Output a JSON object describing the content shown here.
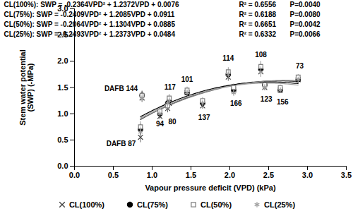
{
  "chart_data": {
    "type": "scatter",
    "xlabel": "Vapour pressure deficit (VPD) (kPa)",
    "ylabel": [
      "Stem water potential",
      "(SWP) (-MPa)"
    ],
    "xlim": [
      0,
      3.5
    ],
    "xticks": [
      {
        "value": 0,
        "label": "0.0"
      },
      {
        "value": 0.5,
        "label": "0.5"
      },
      {
        "value": 1,
        "label": "1.0"
      },
      {
        "value": 1.5,
        "label": "1.5"
      },
      {
        "value": 2,
        "label": "2.0"
      },
      {
        "value": 2.5,
        "label": "2.5"
      },
      {
        "value": 3,
        "label": "3.0"
      },
      {
        "value": 3.5,
        "label": "3.5"
      }
    ],
    "ylim": [
      0,
      3
    ],
    "yticks": [
      {
        "value": 0,
        "label": "0.0"
      },
      {
        "value": 0.5,
        "label": "0.5"
      },
      {
        "value": 1,
        "label": "1.0"
      },
      {
        "value": 1.5,
        "label": "1.5"
      },
      {
        "value": 2,
        "label": "2.0"
      },
      {
        "value": 2.5,
        "label": "2.5"
      },
      {
        "value": 3,
        "label": "3.0"
      }
    ],
    "grid": false,
    "legend": "bottom",
    "x": [
      0.85,
      0.87,
      1.1,
      1.2,
      1.22,
      1.45,
      1.65,
      1.98,
      2.05,
      2.4,
      2.45,
      2.65,
      2.88
    ],
    "series": [
      {
        "name": "CL(100%)",
        "color": "#404040",
        "marker": "times",
        "values": [
          0.55,
          1.3,
          0.95,
          1.1,
          1.2,
          1.4,
          1.15,
          1.7,
          1.45,
          1.8,
          1.5,
          1.45,
          1.65
        ],
        "errors": [
          0.1,
          0.08,
          0.06,
          0.08,
          0.07,
          0.06,
          0.06,
          0.08,
          0.07,
          0.1,
          0.06,
          0.05,
          0.05
        ],
        "fit": [
          -0.2364,
          1.2372,
          0.0076
        ],
        "equation": ": SWP = -0.2364VPD² + 1.2372VPD + 0.0076",
        "r2": "R² = 0.6556",
        "p": "P=0.0040"
      },
      {
        "name": "CL(75%)",
        "color": "#000000",
        "marker": "circle",
        "values": [
          0.7,
          1.35,
          1.0,
          1.2,
          1.25,
          1.4,
          1.2,
          1.75,
          1.45,
          1.85,
          1.55,
          1.45,
          1.65
        ],
        "errors": [
          0.1,
          0.08,
          0.06,
          0.08,
          0.07,
          0.06,
          0.06,
          0.08,
          0.07,
          0.1,
          0.06,
          0.05,
          0.05
        ],
        "fit": [
          -0.2409,
          1.2085,
          0.0911
        ],
        "equation": ": SWP = -0.2409VPD² + 1.2085VPD + 0.0911",
        "r2": "R² = 0.6188",
        "p": "P=0.0080"
      },
      {
        "name": "CL(50%)",
        "color": "#808080",
        "marker": "square",
        "values": [
          0.75,
          1.35,
          1.05,
          1.15,
          1.3,
          1.45,
          1.25,
          1.8,
          1.5,
          1.9,
          1.55,
          1.5,
          1.7
        ],
        "errors": [
          0.1,
          0.08,
          0.06,
          0.08,
          0.07,
          0.06,
          0.06,
          0.08,
          0.07,
          0.1,
          0.06,
          0.05,
          0.05
        ],
        "fit": [
          -0.2064,
          1.1304,
          0.0885
        ],
        "equation": ": SWP = -0.2064VPD² + 1.1304VPD + 0.0885",
        "r2": "R² = 0.6651",
        "p": "P=0.0042"
      },
      {
        "name": "CL(25%)",
        "color": "#a0a0a0",
        "marker": "asterisk",
        "values": [
          0.65,
          1.3,
          1.0,
          1.2,
          1.25,
          1.4,
          1.2,
          1.75,
          1.4,
          1.8,
          1.5,
          1.45,
          1.65
        ],
        "errors": [
          0.1,
          0.08,
          0.06,
          0.08,
          0.07,
          0.06,
          0.06,
          0.08,
          0.07,
          0.1,
          0.06,
          0.05,
          0.05
        ],
        "fit": [
          -0.2493,
          1.2373,
          0.0484
        ],
        "equation": ": SWP = -0.2493VPD² + 1.2373VPD + 0.0484",
        "r2": "R² = 0.6332",
        "p": "P=0.0066"
      }
    ],
    "annotations": [
      {
        "text": "DAFB 144",
        "x": 0.6,
        "y": 1.48
      },
      {
        "text": "117",
        "x": 1.23,
        "y": 1.5
      },
      {
        "text": "101",
        "x": 1.45,
        "y": 1.65
      },
      {
        "text": "114",
        "x": 1.98,
        "y": 2.05
      },
      {
        "text": "108",
        "x": 2.4,
        "y": 2.12
      },
      {
        "text": "73",
        "x": 2.9,
        "y": 1.9
      },
      {
        "text": "DAFB 87",
        "x": 0.6,
        "y": 0.43
      },
      {
        "text": "94",
        "x": 1.1,
        "y": 0.8
      },
      {
        "text": "80",
        "x": 1.26,
        "y": 0.85
      },
      {
        "text": "137",
        "x": 1.67,
        "y": 0.92
      },
      {
        "text": "166",
        "x": 2.08,
        "y": 1.2
      },
      {
        "text": "123",
        "x": 2.47,
        "y": 1.28
      },
      {
        "text": "156",
        "x": 2.68,
        "y": 1.22
      }
    ]
  }
}
